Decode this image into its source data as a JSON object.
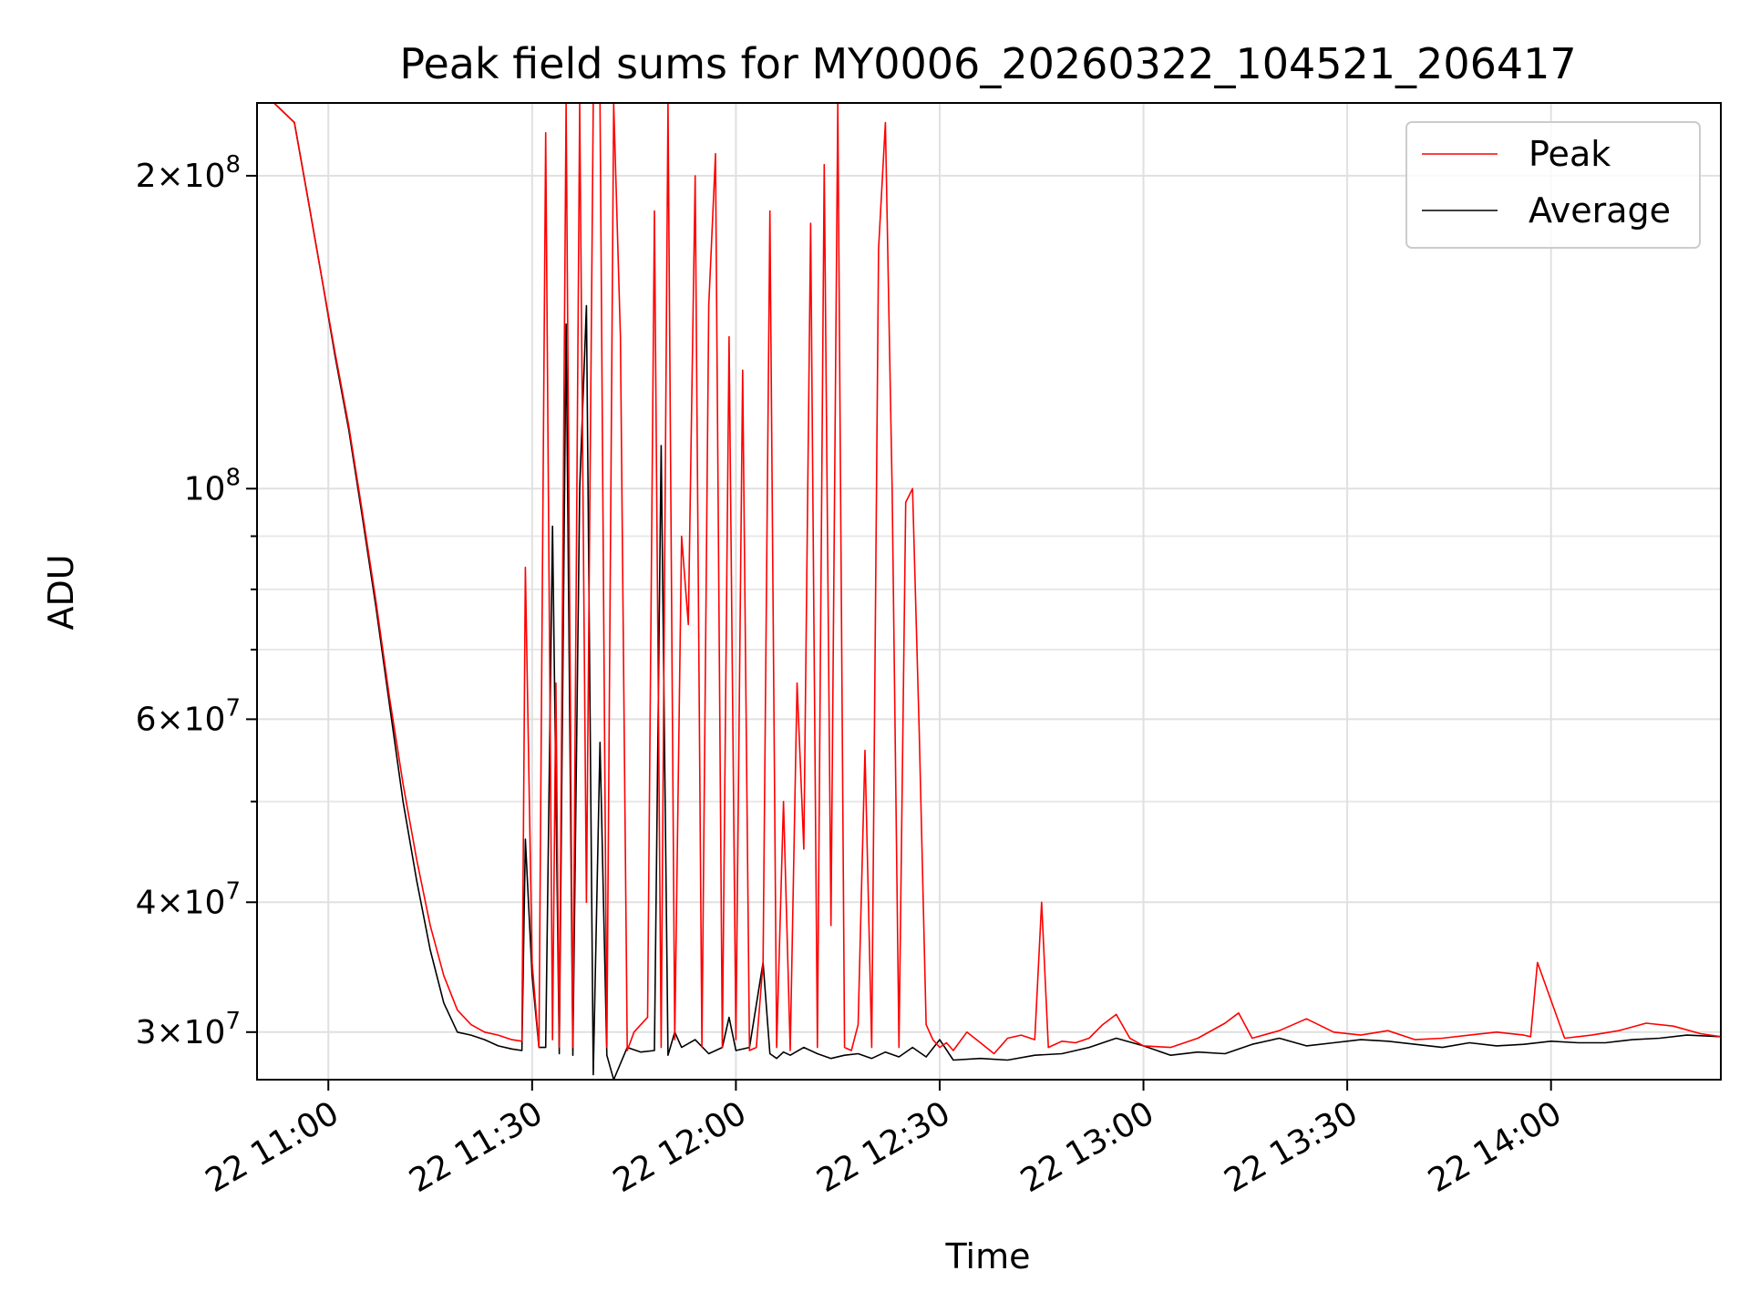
{
  "chart_data": {
    "type": "line",
    "title": "Peak field sums for MY0006_20260322_104521_206417",
    "xlabel": "Time",
    "ylabel": "ADU",
    "yscale": "log",
    "grid": true,
    "legend_position": "top-right",
    "xlim": [
      "22 10:49:30",
      "22 14:25:00"
    ],
    "ylim": [
      27000000,
      235000000
    ],
    "x_ticks": [
      "22 11:00",
      "22 11:30",
      "22 12:00",
      "22 12:30",
      "22 13:00",
      "22 13:30",
      "22 14:00"
    ],
    "y_ticks_major": [
      {
        "value": 30000000,
        "mantissa": "3",
        "exponent": "7"
      },
      {
        "value": 40000000,
        "mantissa": "4",
        "exponent": "7"
      },
      {
        "value": 60000000,
        "mantissa": "6",
        "exponent": "7"
      },
      {
        "value": 100000000,
        "mantissa": "",
        "exponent": "8"
      },
      {
        "value": 200000000,
        "mantissa": "2",
        "exponent": "8"
      }
    ],
    "y_ticks_minor": [
      50000000,
      70000000,
      80000000,
      90000000
    ],
    "series": [
      {
        "name": "Peak",
        "color": "#ff0000",
        "x": [
          "22 10:49:30",
          "22 10:52",
          "22 10:55",
          "22 10:57",
          "22 10:59",
          "22 11:01",
          "22 11:03",
          "22 11:05",
          "22 11:07",
          "22 11:09",
          "22 11:11",
          "22 11:13",
          "22 11:15",
          "22 11:17",
          "22 11:19",
          "22 11:21",
          "22 11:23",
          "22 11:25",
          "22 11:27",
          "22 11:28:30",
          "22 11:29",
          "22 11:30",
          "22 11:31",
          "22 11:32",
          "22 11:33",
          "22 11:33:30",
          "22 11:34",
          "22 11:35",
          "22 11:36",
          "22 11:37",
          "22 11:38",
          "22 11:39",
          "22 11:40",
          "22 11:41",
          "22 11:42",
          "22 11:43",
          "22 11:44",
          "22 11:45",
          "22 11:46",
          "22 11:47",
          "22 11:48",
          "22 11:49",
          "22 11:50",
          "22 11:51",
          "22 11:52",
          "22 11:53",
          "22 11:54",
          "22 11:55",
          "22 11:56",
          "22 11:57",
          "22 11:58",
          "22 11:59",
          "22 12:00",
          "22 12:01",
          "22 12:02",
          "22 12:03",
          "22 12:04",
          "22 12:05",
          "22 12:06",
          "22 12:07",
          "22 12:08",
          "22 12:09",
          "22 12:10",
          "22 12:11",
          "22 12:12",
          "22 12:13",
          "22 12:14",
          "22 12:15",
          "22 12:16",
          "22 12:17",
          "22 12:18",
          "22 12:19",
          "22 12:20",
          "22 12:21",
          "22 12:22",
          "22 12:23",
          "22 12:24",
          "22 12:25",
          "22 12:26",
          "22 12:27",
          "22 12:28",
          "22 12:29",
          "22 12:30",
          "22 12:31",
          "22 12:32",
          "22 12:34",
          "22 12:36",
          "22 12:38",
          "22 12:40",
          "22 12:42",
          "22 12:44",
          "22 12:45",
          "22 12:46",
          "22 12:48",
          "22 12:50",
          "22 12:52",
          "22 12:54",
          "22 12:56",
          "22 12:58",
          "22 13:00",
          "22 13:04",
          "22 13:08",
          "22 13:12",
          "22 13:14",
          "22 13:16",
          "22 13:20",
          "22 13:24",
          "22 13:28",
          "22 13:32",
          "22 13:36",
          "22 13:40",
          "22 13:44",
          "22 13:48",
          "22 13:52",
          "22 13:56",
          "22 13:57",
          "22 13:58",
          "22 14:02",
          "22 14:06",
          "22 14:10",
          "22 14:14",
          "22 14:18",
          "22 14:22",
          "22 14:25"
        ],
        "values": [
          235000000,
          235000000,
          225000000,
          190000000,
          160000000,
          135000000,
          115000000,
          95000000,
          78000000,
          63000000,
          52000000,
          44000000,
          38000000,
          34000000,
          31500000,
          30500000,
          30000000,
          29800000,
          29500000,
          29400000,
          84000000,
          35000000,
          29000000,
          220000000,
          29500000,
          65000000,
          29000000,
          235000000,
          29000000,
          235000000,
          40000000,
          235000000,
          235000000,
          29000000,
          235000000,
          140000000,
          28800000,
          30000000,
          30500000,
          31000000,
          185000000,
          29000000,
          235000000,
          29500000,
          90000000,
          74000000,
          200000000,
          29000000,
          150000000,
          210000000,
          29000000,
          140000000,
          29500000,
          130000000,
          28800000,
          29000000,
          35000000,
          185000000,
          29000000,
          50000000,
          28800000,
          65000000,
          45000000,
          180000000,
          29000000,
          205000000,
          38000000,
          235000000,
          29000000,
          28800000,
          30500000,
          56000000,
          29000000,
          170000000,
          225000000,
          100000000,
          29000000,
          97000000,
          100000000,
          58000000,
          30500000,
          29500000,
          29000000,
          29300000,
          28800000,
          30000000,
          29300000,
          28600000,
          29600000,
          29800000,
          29500000,
          40000000,
          29000000,
          29400000,
          29300000,
          29600000,
          30500000,
          31200000,
          29600000,
          29100000,
          29000000,
          29600000,
          30600000,
          31300000,
          29600000,
          30100000,
          30900000,
          30000000,
          29800000,
          30100000,
          29500000,
          29600000,
          29800000,
          30000000,
          29800000,
          29700000,
          35000000,
          29600000,
          29800000,
          30100000,
          30600000,
          30400000,
          29900000,
          29700000
        ]
      },
      {
        "name": "Average",
        "color": "#000000",
        "x": [
          "22 10:49:30",
          "22 10:52",
          "22 10:55",
          "22 10:57",
          "22 10:59",
          "22 11:01",
          "22 11:03",
          "22 11:05",
          "22 11:07",
          "22 11:09",
          "22 11:11",
          "22 11:13",
          "22 11:15",
          "22 11:17",
          "22 11:19",
          "22 11:21",
          "22 11:23",
          "22 11:25",
          "22 11:27",
          "22 11:28:30",
          "22 11:29",
          "22 11:30",
          "22 11:31",
          "22 11:32",
          "22 11:33",
          "22 11:34",
          "22 11:35",
          "22 11:36",
          "22 11:37",
          "22 11:38",
          "22 11:39",
          "22 11:40",
          "22 11:41",
          "22 11:42",
          "22 11:44",
          "22 11:46",
          "22 11:48",
          "22 11:49",
          "22 11:50",
          "22 11:51",
          "22 11:52",
          "22 11:54",
          "22 11:56",
          "22 11:58",
          "22 11:59",
          "22 12:00",
          "22 12:02",
          "22 12:04",
          "22 12:05",
          "22 12:06",
          "22 12:07",
          "22 12:08",
          "22 12:10",
          "22 12:12",
          "22 12:14",
          "22 12:16",
          "22 12:18",
          "22 12:20",
          "22 12:22",
          "22 12:24",
          "22 12:26",
          "22 12:28",
          "22 12:30",
          "22 12:32",
          "22 12:36",
          "22 12:40",
          "22 12:44",
          "22 12:48",
          "22 12:52",
          "22 12:56",
          "22 13:00",
          "22 13:04",
          "22 13:08",
          "22 13:12",
          "22 13:16",
          "22 13:20",
          "22 13:24",
          "22 13:28",
          "22 13:32",
          "22 13:36",
          "22 13:40",
          "22 13:44",
          "22 13:48",
          "22 13:52",
          "22 13:56",
          "22 14:00",
          "22 14:04",
          "22 14:08",
          "22 14:12",
          "22 14:16",
          "22 14:20",
          "22 14:25"
        ],
        "values": [
          235000000,
          235000000,
          225000000,
          190000000,
          160000000,
          134000000,
          114000000,
          94000000,
          77000000,
          62000000,
          50000000,
          42000000,
          36000000,
          32000000,
          30000000,
          29800000,
          29500000,
          29100000,
          28900000,
          28800000,
          46000000,
          34000000,
          29000000,
          29000000,
          92000000,
          28600000,
          144000000,
          28500000,
          100000000,
          150000000,
          27300000,
          57000000,
          28500000,
          27000000,
          29000000,
          28700000,
          28800000,
          110000000,
          28500000,
          30000000,
          29000000,
          29500000,
          28600000,
          29000000,
          31000000,
          28800000,
          29000000,
          35000000,
          28600000,
          28300000,
          28700000,
          28500000,
          29000000,
          28600000,
          28300000,
          28500000,
          28600000,
          28300000,
          28700000,
          28400000,
          29000000,
          28400000,
          29500000,
          28200000,
          28300000,
          28200000,
          28500000,
          28600000,
          29000000,
          29600000,
          29100000,
          28500000,
          28700000,
          28600000,
          29200000,
          29600000,
          29100000,
          29300000,
          29500000,
          29400000,
          29200000,
          29000000,
          29300000,
          29100000,
          29200000,
          29400000,
          29300000,
          29300000,
          29500000,
          29600000,
          29800000,
          29700000
        ]
      }
    ]
  }
}
